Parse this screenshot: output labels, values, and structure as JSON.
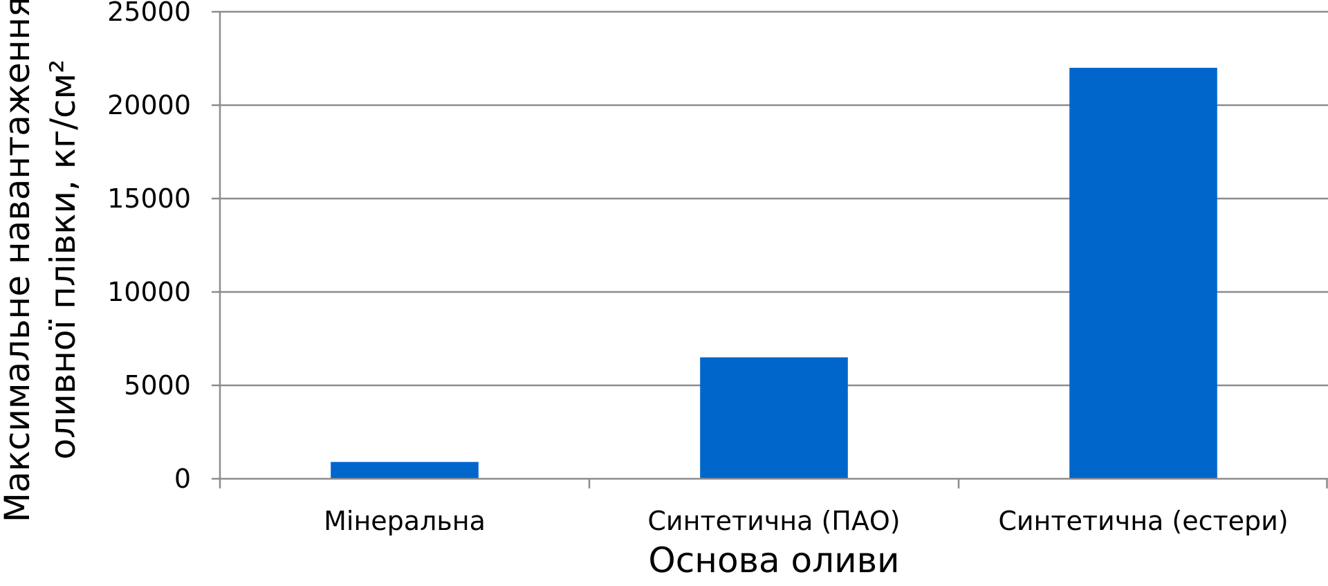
{
  "chart_data": {
    "type": "bar",
    "categories": [
      "Мінеральна",
      "Синтетична (ПАО)",
      "Синтетична (естери)"
    ],
    "values": [
      900,
      6500,
      22000
    ],
    "title": "",
    "xlabel": "Основа оливи",
    "ylabel_lines": [
      "Максимальне навантаження",
      "оливної плівки, кг/см²"
    ],
    "ylim": [
      0,
      25000
    ],
    "yticks": [
      "0",
      "5000",
      "10000",
      "15000",
      "20000",
      "25000"
    ],
    "grid": true,
    "legend": "none",
    "colors": {
      "bar": "#0066CC",
      "grid": "#8C8C8C",
      "axis": "#8C8C8C",
      "text": "#000000"
    }
  }
}
